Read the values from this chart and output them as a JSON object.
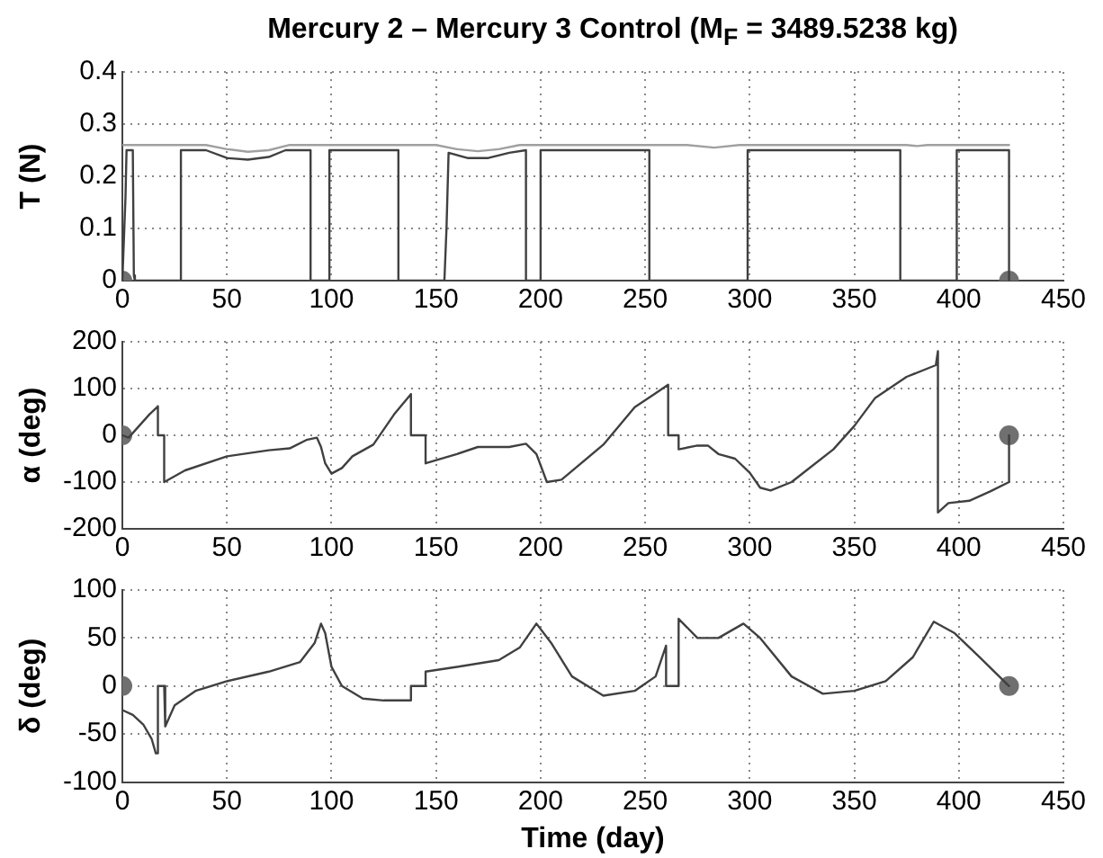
{
  "chart_data": [
    {
      "type": "line",
      "title": "Mercury 2 – Mercury 3 Control (M$_{F}$ = 3489.5238 kg)",
      "ylabel": "T (N)",
      "xlim": [
        0,
        450
      ],
      "xticks": [
        0,
        50,
        100,
        150,
        200,
        250,
        300,
        350,
        400,
        450
      ],
      "ylim": [
        0,
        0.4
      ],
      "yticks": [
        0,
        0.1,
        0.2,
        0.3,
        0.4
      ],
      "grid": true,
      "legend": false,
      "series": [
        {
          "color": "#a0a0a0",
          "x": [
            0,
            40,
            50,
            60,
            70,
            80,
            150,
            160,
            170,
            180,
            190,
            270,
            283,
            295,
            375,
            380,
            385,
            424
          ],
          "values": [
            0.26,
            0.26,
            0.252,
            0.247,
            0.25,
            0.26,
            0.26,
            0.252,
            0.248,
            0.252,
            0.26,
            0.26,
            0.255,
            0.26,
            0.26,
            0.258,
            0.26,
            0.26
          ]
        },
        {
          "color": "#404040",
          "x": [
            0,
            1.5,
            2,
            5,
            5.5,
            6,
            28,
            28,
            40,
            50,
            60,
            70,
            78,
            90,
            90,
            99,
            99,
            132,
            132,
            154,
            155,
            156,
            165,
            175,
            185,
            193,
            193,
            200,
            200,
            252,
            252,
            299,
            299,
            372,
            372,
            399,
            399,
            424,
            424
          ],
          "values": [
            0,
            0.16,
            0.25,
            0.25,
            0.01,
            0,
            0,
            0.25,
            0.25,
            0.235,
            0.232,
            0.237,
            0.25,
            0.25,
            0,
            0,
            0.25,
            0.25,
            0,
            0,
            0.1,
            0.245,
            0.235,
            0.235,
            0.245,
            0.25,
            0,
            0,
            0.25,
            0.25,
            0,
            0,
            0.25,
            0.25,
            0,
            0,
            0.25,
            0.25,
            0
          ]
        },
        {
          "type": "scatter",
          "marker": "circle",
          "color": "#707070",
          "x": [
            0,
            424
          ],
          "values": [
            0,
            0
          ]
        }
      ]
    },
    {
      "type": "line",
      "ylabel": "α (deg)",
      "xlim": [
        0,
        450
      ],
      "xticks": [
        0,
        50,
        100,
        150,
        200,
        250,
        300,
        350,
        400,
        450
      ],
      "ylim": [
        -200,
        200
      ],
      "yticks": [
        -200,
        -100,
        0,
        100,
        200
      ],
      "grid": true,
      "legend": false,
      "series": [
        {
          "color": "#404040",
          "x": [
            0,
            3,
            8,
            13,
            17,
            17,
            20,
            20,
            30,
            50,
            70,
            80,
            88,
            93,
            95,
            97,
            100,
            105,
            110,
            120,
            130,
            138,
            138,
            145,
            145,
            160,
            170,
            185,
            193,
            198,
            203,
            210,
            230,
            245,
            255,
            261,
            261,
            266,
            266,
            275,
            280,
            285,
            293,
            300,
            305,
            310,
            320,
            340,
            350,
            360,
            375,
            389,
            390,
            390,
            395,
            405,
            415,
            424,
            424
          ],
          "values": [
            0,
            -5,
            20,
            45,
            62,
            0,
            0,
            -100,
            -75,
            -45,
            -32,
            -28,
            -10,
            -5,
            -25,
            -60,
            -82,
            -70,
            -45,
            -20,
            45,
            88,
            0,
            0,
            -60,
            -40,
            -25,
            -25,
            -18,
            -40,
            -100,
            -95,
            -20,
            60,
            90,
            108,
            0,
            0,
            -30,
            -22,
            -22,
            -40,
            -50,
            -80,
            -112,
            -118,
            -100,
            -30,
            20,
            80,
            125,
            150,
            180,
            -165,
            -145,
            -140,
            -120,
            -100,
            0
          ]
        },
        {
          "type": "scatter",
          "marker": "circle",
          "color": "#707070",
          "x": [
            0,
            424
          ],
          "values": [
            0,
            0
          ]
        }
      ]
    },
    {
      "type": "line",
      "ylabel": "δ (deg)",
      "xlabel": "Time (day)",
      "xlim": [
        0,
        450
      ],
      "xticks": [
        0,
        50,
        100,
        150,
        200,
        250,
        300,
        350,
        400,
        450
      ],
      "ylim": [
        -100,
        100
      ],
      "yticks": [
        -100,
        -50,
        0,
        50,
        100
      ],
      "grid": true,
      "legend": false,
      "series": [
        {
          "color": "#404040",
          "x": [
            0,
            5,
            10,
            14,
            16,
            17,
            17,
            20,
            20.5,
            25,
            35,
            50,
            70,
            85,
            92,
            95,
            97,
            100,
            105,
            115,
            125,
            138,
            138,
            145,
            145,
            160,
            180,
            190,
            198,
            205,
            215,
            230,
            245,
            255,
            260,
            260,
            266,
            266,
            275,
            285,
            297,
            305,
            320,
            335,
            350,
            365,
            378,
            388,
            398,
            410,
            424
          ],
          "values": [
            -25,
            -30,
            -40,
            -55,
            -70,
            -70,
            0,
            0,
            -42,
            -20,
            -5,
            5,
            15,
            25,
            45,
            65,
            55,
            20,
            0,
            -13,
            -15,
            -15,
            0,
            0,
            15,
            20,
            27,
            40,
            65,
            45,
            10,
            -10,
            -5,
            10,
            42,
            0,
            0,
            70,
            50,
            50,
            65,
            50,
            10,
            -8,
            -5,
            5,
            30,
            67,
            55,
            30,
            0
          ]
        },
        {
          "type": "scatter",
          "marker": "circle",
          "color": "#707070",
          "x": [
            0,
            424
          ],
          "values": [
            0,
            0
          ]
        }
      ]
    }
  ]
}
